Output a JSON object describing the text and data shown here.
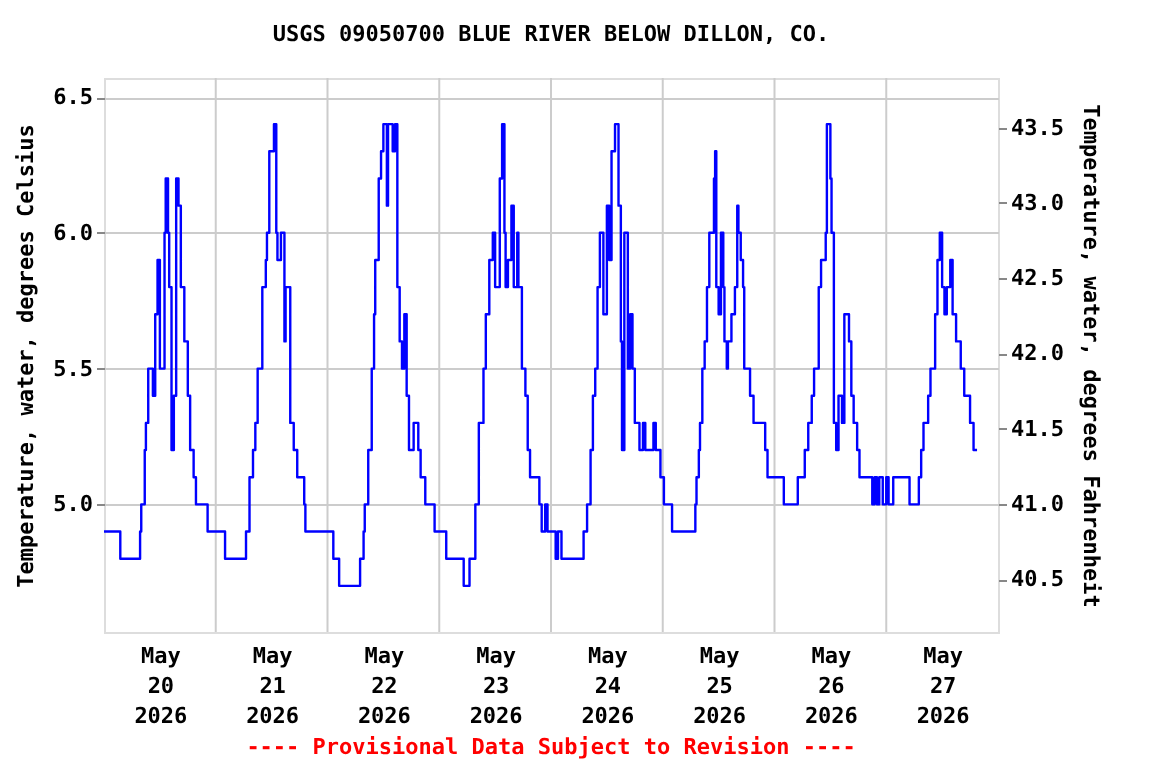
{
  "chart_data": {
    "type": "step",
    "title": "USGS 09050700 BLUE RIVER BELOW DILLON, CO.",
    "ylabel": "Temperature, water, degrees Celsius",
    "y2label": "Temperature, water, degrees Fahrenheit",
    "annotations": [
      "---- Provisional Data Subject to Revision ----"
    ],
    "x": [
      "2026-05-20T00:00",
      "2026-05-20T03:30",
      "2026-05-20T07:45",
      "2026-05-20T08:00",
      "2026-05-20T08:45",
      "2026-05-20T09:00",
      "2026-05-20T09:30",
      "2026-05-20T10:30",
      "2026-05-20T11:00",
      "2026-05-20T11:30",
      "2026-05-20T12:00",
      "2026-05-20T13:00",
      "2026-05-20T13:15",
      "2026-05-20T13:45",
      "2026-05-20T14:00",
      "2026-05-20T14:30",
      "2026-05-20T15:00",
      "2026-05-20T15:30",
      "2026-05-20T16:00",
      "2026-05-20T16:30",
      "2026-05-20T17:15",
      "2026-05-20T18:00",
      "2026-05-20T18:30",
      "2026-05-20T19:15",
      "2026-05-20T19:45",
      "2026-05-20T22:15",
      "2026-05-21T02:00",
      "2026-05-21T06:30",
      "2026-05-21T07:15",
      "2026-05-21T08:00",
      "2026-05-21T08:30",
      "2026-05-21T09:00",
      "2026-05-21T10:00",
      "2026-05-21T10:45",
      "2026-05-21T11:00",
      "2026-05-21T11:30",
      "2026-05-21T12:30",
      "2026-05-21T13:00",
      "2026-05-21T13:15",
      "2026-05-21T14:00",
      "2026-05-21T14:45",
      "2026-05-21T15:00",
      "2026-05-21T16:00",
      "2026-05-21T16:45",
      "2026-05-21T17:30",
      "2026-05-21T19:00",
      "2026-05-21T19:15",
      "2026-05-22T01:15",
      "2026-05-22T02:30",
      "2026-05-22T07:00",
      "2026-05-22T07:45",
      "2026-05-22T08:00",
      "2026-05-22T08:45",
      "2026-05-22T09:30",
      "2026-05-22T10:00",
      "2026-05-22T10:15",
      "2026-05-22T11:00",
      "2026-05-22T11:30",
      "2026-05-22T12:00",
      "2026-05-22T12:45",
      "2026-05-22T13:00",
      "2026-05-22T14:00",
      "2026-05-22T14:30",
      "2026-05-22T15:00",
      "2026-05-22T15:30",
      "2026-05-22T16:00",
      "2026-05-22T16:30",
      "2026-05-22T17:00",
      "2026-05-22T17:30",
      "2026-05-22T18:30",
      "2026-05-22T19:30",
      "2026-05-22T20:00",
      "2026-05-22T21:00",
      "2026-05-22T23:00",
      "2026-05-23T01:30",
      "2026-05-23T05:15",
      "2026-05-23T06:30",
      "2026-05-23T07:45",
      "2026-05-23T08:30",
      "2026-05-23T09:30",
      "2026-05-23T10:00",
      "2026-05-23T10:45",
      "2026-05-23T11:30",
      "2026-05-23T12:00",
      "2026-05-23T13:00",
      "2026-05-23T13:30",
      "2026-05-23T14:00",
      "2026-05-23T14:15",
      "2026-05-23T14:45",
      "2026-05-23T15:30",
      "2026-05-23T16:00",
      "2026-05-23T16:45",
      "2026-05-23T17:00",
      "2026-05-23T17:45",
      "2026-05-23T18:30",
      "2026-05-23T19:00",
      "2026-05-23T19:30",
      "2026-05-23T21:30",
      "2026-05-23T22:00",
      "2026-05-23T22:45",
      "2026-05-23T23:15",
      "2026-05-24T01:00",
      "2026-05-24T01:30",
      "2026-05-24T02:15",
      "2026-05-24T07:00",
      "2026-05-24T07:45",
      "2026-05-24T08:30",
      "2026-05-24T09:00",
      "2026-05-24T09:30",
      "2026-05-24T10:00",
      "2026-05-24T10:30",
      "2026-05-24T11:15",
      "2026-05-24T12:00",
      "2026-05-24T12:30",
      "2026-05-24T13:00",
      "2026-05-24T13:45",
      "2026-05-24T14:30",
      "2026-05-24T15:00",
      "2026-05-24T15:15",
      "2026-05-24T15:45",
      "2026-05-24T16:30",
      "2026-05-24T17:00",
      "2026-05-24T17:30",
      "2026-05-24T18:00",
      "2026-05-24T19:00",
      "2026-05-24T19:45",
      "2026-05-24T20:15",
      "2026-05-24T22:00",
      "2026-05-24T22:30",
      "2026-05-24T23:30",
      "2026-05-25T00:15",
      "2026-05-25T02:00",
      "2026-05-25T07:00",
      "2026-05-25T07:15",
      "2026-05-25T07:45",
      "2026-05-25T08:00",
      "2026-05-25T08:30",
      "2026-05-25T09:00",
      "2026-05-25T09:30",
      "2026-05-25T10:00",
      "2026-05-25T11:00",
      "2026-05-25T11:15",
      "2026-05-25T11:30",
      "2026-05-25T12:00",
      "2026-05-25T12:30",
      "2026-05-25T13:00",
      "2026-05-25T13:15",
      "2026-05-25T13:45",
      "2026-05-25T14:00",
      "2026-05-25T14:45",
      "2026-05-25T15:30",
      "2026-05-25T16:00",
      "2026-05-25T16:15",
      "2026-05-25T16:45",
      "2026-05-25T17:15",
      "2026-05-25T17:30",
      "2026-05-25T18:45",
      "2026-05-25T19:30",
      "2026-05-25T22:00",
      "2026-05-25T22:30",
      "2026-05-26T02:00",
      "2026-05-26T05:00",
      "2026-05-26T06:30",
      "2026-05-26T07:15",
      "2026-05-26T08:00",
      "2026-05-26T08:30",
      "2026-05-26T09:30",
      "2026-05-26T10:00",
      "2026-05-26T11:00",
      "2026-05-26T11:15",
      "2026-05-26T12:00",
      "2026-05-26T12:15",
      "2026-05-26T12:45",
      "2026-05-26T13:15",
      "2026-05-26T13:45",
      "2026-05-26T14:30",
      "2026-05-26T15:00",
      "2026-05-26T16:00",
      "2026-05-26T16:30",
      "2026-05-26T17:00",
      "2026-05-26T17:45",
      "2026-05-26T18:15",
      "2026-05-26T21:00",
      "2026-05-26T21:30",
      "2026-05-26T22:00",
      "2026-05-26T22:30",
      "2026-05-26T23:15",
      "2026-05-27T00:00",
      "2026-05-27T00:30",
      "2026-05-27T01:30",
      "2026-05-27T05:00",
      "2026-05-27T07:00",
      "2026-05-27T07:30",
      "2026-05-27T08:00",
      "2026-05-27T09:00",
      "2026-05-27T09:30",
      "2026-05-27T10:30",
      "2026-05-27T11:00",
      "2026-05-27T11:30",
      "2026-05-27T12:00",
      "2026-05-27T12:30",
      "2026-05-27T13:00",
      "2026-05-27T13:45",
      "2026-05-27T14:15",
      "2026-05-27T15:00",
      "2026-05-27T16:00",
      "2026-05-27T16:45",
      "2026-05-27T18:00",
      "2026-05-27T18:45",
      "2026-05-27T19:30"
    ],
    "series": [
      {
        "color": "#0000ff",
        "values": [
          4.9,
          4.8,
          4.9,
          5.0,
          5.2,
          5.3,
          5.5,
          5.4,
          5.7,
          5.9,
          5.5,
          6.0,
          6.2,
          6.0,
          5.8,
          5.2,
          5.4,
          6.2,
          6.1,
          5.8,
          5.6,
          5.4,
          5.2,
          5.1,
          5.0,
          4.9,
          4.8,
          4.9,
          5.1,
          5.2,
          5.3,
          5.5,
          5.8,
          5.9,
          6.0,
          6.3,
          6.4,
          6.0,
          5.9,
          6.0,
          5.6,
          5.8,
          5.3,
          5.2,
          5.1,
          5.0,
          4.9,
          4.8,
          4.7,
          4.8,
          4.9,
          5.0,
          5.2,
          5.5,
          5.7,
          5.9,
          6.2,
          6.3,
          6.4,
          6.1,
          6.4,
          6.3,
          6.4,
          5.8,
          5.6,
          5.5,
          5.7,
          5.4,
          5.2,
          5.3,
          5.2,
          5.1,
          5.0,
          4.9,
          4.8,
          4.7,
          4.8,
          5.0,
          5.3,
          5.5,
          5.7,
          5.9,
          6.0,
          5.8,
          6.2,
          6.4,
          6.0,
          5.8,
          5.9,
          6.1,
          5.8,
          6.0,
          5.8,
          5.5,
          5.4,
          5.2,
          5.1,
          5.0,
          4.9,
          5.0,
          4.9,
          4.8,
          4.9,
          4.8,
          4.9,
          5.0,
          5.2,
          5.4,
          5.5,
          5.8,
          6.0,
          5.7,
          6.1,
          5.9,
          6.3,
          6.4,
          6.1,
          5.6,
          5.2,
          6.0,
          5.5,
          5.7,
          5.5,
          5.3,
          5.2,
          5.3,
          5.2,
          5.3,
          5.2,
          5.1,
          5.0,
          4.9,
          5.0,
          5.1,
          5.2,
          5.3,
          5.5,
          5.6,
          5.8,
          6.0,
          6.2,
          6.3,
          5.8,
          5.7,
          6.0,
          5.8,
          5.6,
          5.5,
          5.6,
          5.7,
          5.8,
          6.1,
          6.0,
          5.9,
          5.8,
          5.5,
          5.4,
          5.3,
          5.2,
          5.1,
          5.0,
          5.1,
          5.2,
          5.3,
          5.4,
          5.5,
          5.8,
          5.9,
          6.0,
          6.4,
          6.2,
          6.0,
          5.3,
          5.2,
          5.4,
          5.3,
          5.7,
          5.6,
          5.4,
          5.3,
          5.2,
          5.1,
          5.0,
          5.1,
          5.0,
          5.1,
          5.0,
          5.1,
          5.0,
          5.1,
          5.0,
          5.1,
          5.2,
          5.3,
          5.4,
          5.5,
          5.7,
          5.9,
          6.0,
          5.8,
          5.7,
          5.8,
          5.9,
          5.7,
          5.6,
          5.5,
          5.4,
          5.3,
          5.2,
          5.2
        ]
      }
    ],
    "xlim": [
      "2026-05-20T00:00",
      "2026-05-28T00:00"
    ],
    "xticks": [
      {
        "value": "2026-05-20T12:00",
        "label": "May 20 2026"
      },
      {
        "value": "2026-05-21T12:00",
        "label": "May 21 2026"
      },
      {
        "value": "2026-05-22T12:00",
        "label": "May 22 2026"
      },
      {
        "value": "2026-05-23T12:00",
        "label": "May 23 2026"
      },
      {
        "value": "2026-05-24T12:00",
        "label": "May 24 2026"
      },
      {
        "value": "2026-05-25T12:00",
        "label": "May 25 2026"
      },
      {
        "value": "2026-05-26T12:00",
        "label": "May 26 2026"
      },
      {
        "value": "2026-05-27T12:00",
        "label": "May 27 2026"
      },
      {
        "value": "2026-05-21T00:00",
        "label": null
      },
      {
        "value": "2026-05-22T00:00",
        "label": null
      },
      {
        "value": "2026-05-23T00:00",
        "label": null
      },
      {
        "value": "2026-05-24T00:00",
        "label": null
      },
      {
        "value": "2026-05-25T00:00",
        "label": null
      },
      {
        "value": "2026-05-26T00:00",
        "label": null
      },
      {
        "value": "2026-05-27T00:00",
        "label": null
      }
    ],
    "ylim": [
      4.53,
      6.57
    ],
    "yticks": [
      {
        "value": 5,
        "label": "5.0"
      },
      {
        "value": 5.5,
        "label": "5.5"
      },
      {
        "value": 6,
        "label": "6.0"
      },
      {
        "value": 6.5,
        "label": "6.5"
      }
    ],
    "y2lim": [
      40.15,
      43.83
    ],
    "y2ticks": [
      {
        "value": 40.5,
        "label": "40.5"
      },
      {
        "value": 41,
        "label": "41.0"
      },
      {
        "value": 41.5,
        "label": "41.5"
      },
      {
        "value": 42,
        "label": "42.0"
      },
      {
        "value": 42.5,
        "label": "42.5"
      },
      {
        "value": 43,
        "label": "43.0"
      },
      {
        "value": 43.5,
        "label": "43.5"
      }
    ],
    "grid": true
  }
}
